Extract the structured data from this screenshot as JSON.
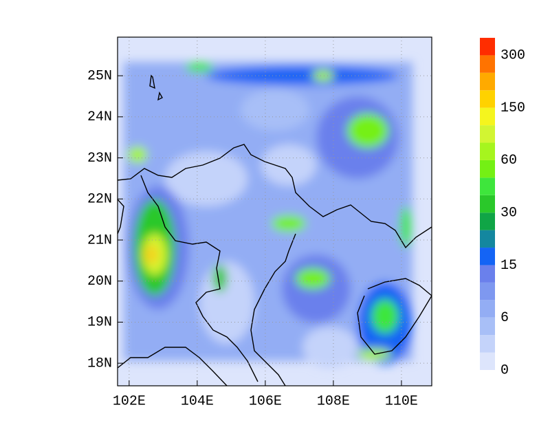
{
  "chart_data": {
    "type": "map",
    "xlim": [
      101.66,
      110.89
    ],
    "ylim": [
      17.45,
      25.94
    ],
    "xticks": [
      {
        "value": 102,
        "label": "102E"
      },
      {
        "value": 104,
        "label": "104E"
      },
      {
        "value": 106,
        "label": "106E"
      },
      {
        "value": 108,
        "label": "108E"
      },
      {
        "value": 110,
        "label": "110E"
      }
    ],
    "yticks": [
      {
        "value": 18,
        "label": "18N"
      },
      {
        "value": 19,
        "label": "19N"
      },
      {
        "value": 20,
        "label": "20N"
      },
      {
        "value": 21,
        "label": "21N"
      },
      {
        "value": 22,
        "label": "22N"
      },
      {
        "value": 23,
        "label": "23N"
      },
      {
        "value": 24,
        "label": "24N"
      },
      {
        "value": 25,
        "label": "25N"
      }
    ],
    "grid": true,
    "colorbar": {
      "colors": [
        "#dde5fc",
        "#c4d3fa",
        "#a8bff7",
        "#93adf4",
        "#7e98f0",
        "#6a80ec",
        "#1464f5",
        "#14879f",
        "#10a546",
        "#2ac82a",
        "#3ee63c",
        "#74f014",
        "#a6f51e",
        "#d2f532",
        "#f5f51e",
        "#ffd200",
        "#ffaa00",
        "#ff7300",
        "#ff2d00"
      ],
      "ticks": [
        0,
        6,
        15,
        30,
        60,
        150,
        300
      ]
    }
  }
}
